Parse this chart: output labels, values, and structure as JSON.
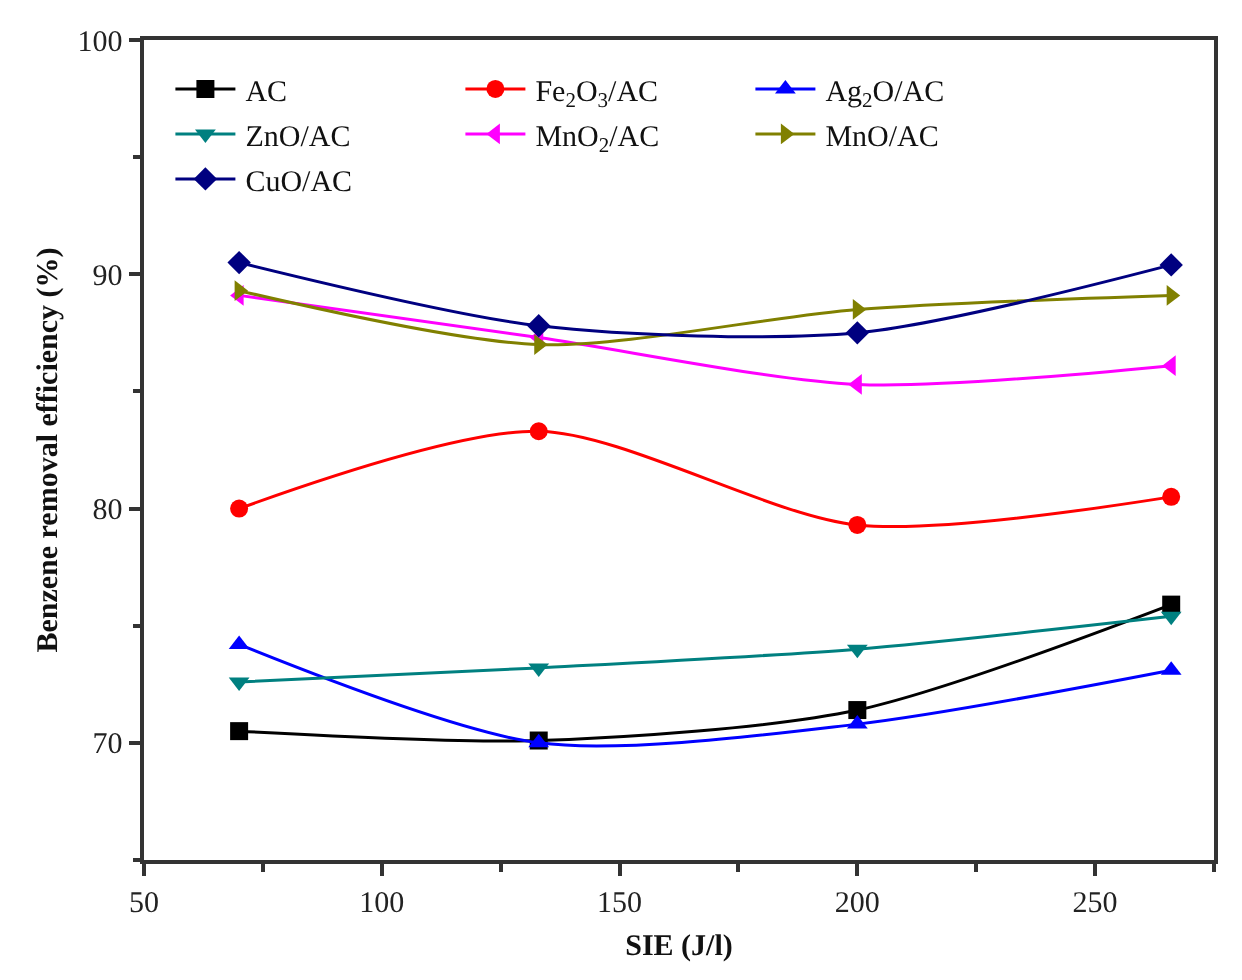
{
  "chart_data": {
    "type": "line",
    "xlabel": "SIE (J/l)",
    "ylabel": "Benzene removal efficiency (%)",
    "x": [
      70,
      133,
      200,
      266
    ],
    "xlim": [
      50,
      275
    ],
    "xticks": [
      50,
      100,
      150,
      200,
      250
    ],
    "ylim": [
      65,
      100
    ],
    "yticks": [
      70,
      80,
      90,
      100
    ],
    "legend": "top",
    "line_style": "solid",
    "series": [
      {
        "name": "AC",
        "color": "#000000",
        "marker": "square",
        "values": [
          70.5,
          70.1,
          71.4,
          75.9
        ]
      },
      {
        "name": "Fe$_{2}$O$_{3}$/AC",
        "color": "#ff0000",
        "marker": "circle",
        "values": [
          80.0,
          83.3,
          79.3,
          80.5
        ]
      },
      {
        "name": "Ag$_{2}$O/AC",
        "color": "#0000ff",
        "marker": "triangle-up",
        "values": [
          74.2,
          70.0,
          70.8,
          73.1
        ]
      },
      {
        "name": "ZnO/AC",
        "color": "#008080",
        "marker": "triangle-down",
        "values": [
          72.6,
          73.2,
          74.0,
          75.4
        ]
      },
      {
        "name": "MnO$_{2}$/AC",
        "color": "#ff00ff",
        "marker": "triangle-left",
        "values": [
          89.1,
          87.3,
          85.3,
          86.1
        ]
      },
      {
        "name": "MnO/AC",
        "color": "#808000",
        "marker": "triangle-right",
        "values": [
          89.3,
          87.0,
          88.5,
          89.1
        ]
      },
      {
        "name": "CuO/AC",
        "color": "#000080",
        "marker": "diamond",
        "values": [
          90.5,
          87.8,
          87.5,
          90.4
        ]
      }
    ]
  }
}
